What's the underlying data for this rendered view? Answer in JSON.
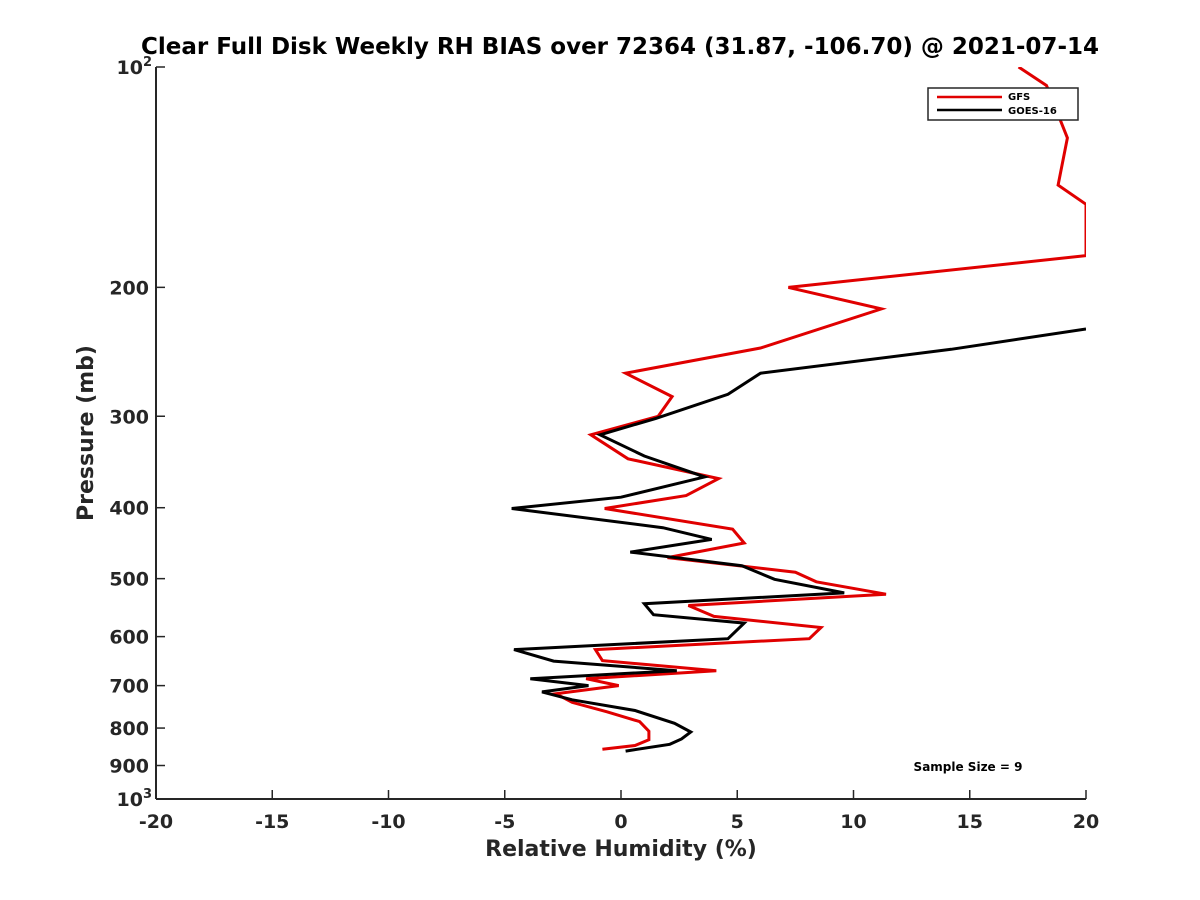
{
  "chart_data": {
    "type": "line",
    "title": "Clear Full Disk Weekly RH BIAS over 72364 (31.87, -106.70) @ 2021-07-14",
    "xlabel": "Relative Humidity (%)",
    "ylabel": "Pressure (mb)",
    "xlim": [
      -20,
      20
    ],
    "ylim": [
      1000,
      100
    ],
    "y_scale": "log",
    "y_reversed": true,
    "grid": false,
    "legend_position": "top-right",
    "x_ticks": [
      "-20",
      "-15",
      "-10",
      "-5",
      "0",
      "5",
      "10",
      "15",
      "20"
    ],
    "y_ticks": [
      {
        "value": 100,
        "base": "10",
        "exp": "2"
      },
      {
        "value": 200,
        "label": "200"
      },
      {
        "value": 300,
        "label": "300"
      },
      {
        "value": 400,
        "label": "400"
      },
      {
        "value": 500,
        "label": "500"
      },
      {
        "value": 600,
        "label": "600"
      },
      {
        "value": 700,
        "label": "700"
      },
      {
        "value": 800,
        "label": "800"
      },
      {
        "value": 900,
        "label": "900"
      },
      {
        "value": 1000,
        "base": "10",
        "exp": "3"
      }
    ],
    "annotation": "Sample Size = 9",
    "series": [
      {
        "name": "GFS",
        "color": "#e00000",
        "points": [
          [
            17.1,
            100
          ],
          [
            18.3,
            106
          ],
          [
            19.2,
            125
          ],
          [
            18.8,
            145
          ],
          [
            20.0,
            154
          ],
          [
            20.0,
            181
          ],
          [
            7.2,
            200
          ],
          [
            11.2,
            214
          ],
          [
            6.0,
            242
          ],
          [
            0.2,
            262
          ],
          [
            2.2,
            282
          ],
          [
            1.6,
            300
          ],
          [
            -1.3,
            318
          ],
          [
            0.3,
            343
          ],
          [
            4.2,
            365
          ],
          [
            2.8,
            385
          ],
          [
            -0.7,
            401
          ],
          [
            4.8,
            428
          ],
          [
            5.3,
            447
          ],
          [
            2.0,
            468
          ],
          [
            7.5,
            490
          ],
          [
            8.4,
            505
          ],
          [
            11.4,
            525
          ],
          [
            2.9,
            544
          ],
          [
            4.0,
            563
          ],
          [
            8.6,
            583
          ],
          [
            8.1,
            604
          ],
          [
            -1.1,
            625
          ],
          [
            -0.8,
            647
          ],
          [
            4.1,
            668
          ],
          [
            -1.5,
            685
          ],
          [
            -0.1,
            700
          ],
          [
            -2.8,
            718
          ],
          [
            -2.1,
            738
          ],
          [
            -0.6,
            760
          ],
          [
            0.8,
            784
          ],
          [
            1.2,
            808
          ],
          [
            1.2,
            830
          ],
          [
            0.6,
            845
          ],
          [
            -0.8,
            855
          ]
        ]
      },
      {
        "name": "GOES-16",
        "color": "#000000",
        "points": [
          [
            20.0,
            228
          ],
          [
            14.2,
            243
          ],
          [
            6.0,
            262
          ],
          [
            4.6,
            280
          ],
          [
            1.5,
            302
          ],
          [
            -0.9,
            318
          ],
          [
            1.0,
            340
          ],
          [
            3.6,
            363
          ],
          [
            0.0,
            387
          ],
          [
            -4.7,
            401
          ],
          [
            1.8,
            426
          ],
          [
            3.9,
            442
          ],
          [
            0.4,
            460
          ],
          [
            5.2,
            480
          ],
          [
            6.6,
            501
          ],
          [
            9.6,
            523
          ],
          [
            1.0,
            541
          ],
          [
            1.4,
            560
          ],
          [
            5.3,
            575
          ],
          [
            4.6,
            604
          ],
          [
            -4.6,
            625
          ],
          [
            -2.9,
            648
          ],
          [
            2.4,
            668
          ],
          [
            -3.9,
            685
          ],
          [
            -1.4,
            700
          ],
          [
            -3.4,
            714
          ],
          [
            -2.1,
            732
          ],
          [
            0.6,
            757
          ],
          [
            2.3,
            788
          ],
          [
            3.0,
            810
          ],
          [
            2.6,
            828
          ],
          [
            2.1,
            842
          ],
          [
            0.2,
            860
          ]
        ]
      }
    ]
  }
}
